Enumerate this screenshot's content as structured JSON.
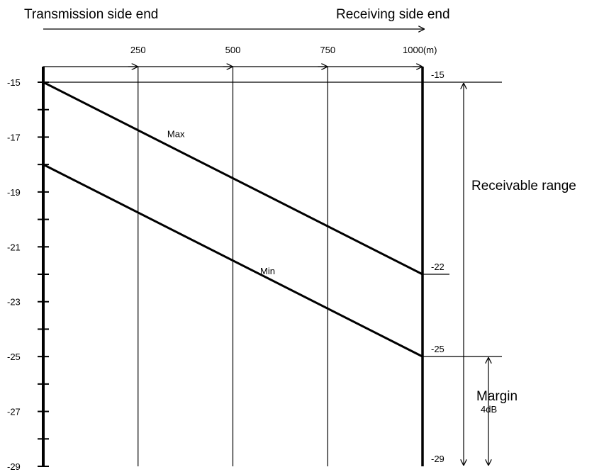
{
  "chart_data": {
    "type": "line",
    "header_left": "Transmission side end",
    "header_right": "Receiving side end",
    "x_unit_suffix": "(m)",
    "xlim": [
      0,
      1000
    ],
    "ylim": [
      -29,
      -15
    ],
    "x_ticks": [
      250,
      500,
      750,
      1000
    ],
    "x_tick_labels": [
      "250",
      "500",
      "750",
      "1000(m)"
    ],
    "y_ticks": [
      -15,
      -17,
      -19,
      -21,
      -23,
      -25,
      -27,
      -29
    ],
    "y_tick_labels": [
      "-15",
      "-17",
      "-19",
      "-21",
      "-23",
      "-25",
      "-27",
      "-29"
    ],
    "series": [
      {
        "name": "Max",
        "x": [
          0,
          1000
        ],
        "y": [
          -15,
          -22
        ]
      },
      {
        "name": "Min",
        "x": [
          0,
          1000
        ],
        "y": [
          -18,
          -25
        ]
      }
    ],
    "right_values": [
      {
        "value": -15,
        "label": "-15"
      },
      {
        "value": -22,
        "label": "-22"
      },
      {
        "value": -25,
        "label": "-25"
      },
      {
        "value": -29,
        "label": "-29"
      }
    ],
    "annotations": {
      "receivable_range": {
        "label": "Receivable range",
        "from": -15,
        "to": -29
      },
      "margin": {
        "label": "Margin",
        "sublabel": "4dB",
        "from": -25,
        "to": -29
      }
    }
  }
}
